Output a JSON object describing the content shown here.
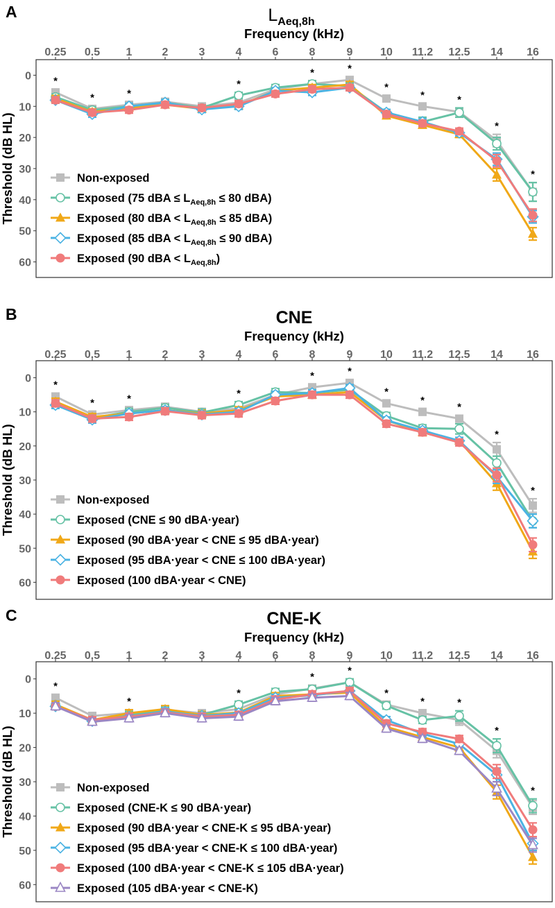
{
  "colors": {
    "non_exposed": "#bdbdbd",
    "green": "#66c2a5",
    "orange": "#f0a818",
    "blue": "#4bb3e3",
    "red": "#f07b7b",
    "purple": "#9b87c4",
    "frame": "#333333",
    "tick_text": "#666666",
    "text": "#000000"
  },
  "chart_data": [
    {
      "type": "line",
      "panel_letter": "A",
      "title_main": "L",
      "title_sub": "Aeq,8h",
      "xlabel": "Frequency (kHz)",
      "ylabel": "Threshold (dB HL)",
      "categories": [
        "0.25",
        "0.5",
        "1",
        "2",
        "3",
        "4",
        "6",
        "8",
        "9",
        "10",
        "11.2",
        "12.5",
        "14",
        "16"
      ],
      "y_ticks": [
        0,
        10,
        20,
        30,
        40,
        50,
        60
      ],
      "ylim": [
        -5,
        65
      ],
      "y_reversed": true,
      "significance_marker": "*",
      "significant_at": [
        "0.25",
        "0.5",
        "1",
        "4",
        "8",
        "9",
        "10",
        "11.2",
        "12.5",
        "14",
        "16"
      ],
      "legend_position": "bottom-left",
      "series": [
        {
          "name": "Non-exposed",
          "label_pre": "Non-exposed",
          "marker": "square",
          "color_key": "non_exposed",
          "values": [
            5.5,
            10.8,
            9.5,
            8.5,
            10.0,
            8.8,
            4.5,
            2.8,
            1.5,
            7.5,
            10.0,
            11.8,
            21.0,
            37.5
          ],
          "errors": [
            1,
            1,
            1,
            1,
            1,
            1,
            1,
            1,
            1,
            1,
            1,
            1,
            2,
            3
          ]
        },
        {
          "name": "Exposed (75 dBA ≤ LAeq,8h ≤ 80 dBA)",
          "label_pre": "Exposed (75 dBA ≤ L",
          "label_sub": "Aeq,8h",
          "label_post": " ≤ 80 dBA)",
          "marker": "circle-open",
          "color_key": "green",
          "values": [
            7.0,
            11.2,
            10.0,
            8.8,
            10.5,
            6.5,
            4.0,
            2.8,
            3.5,
            12.0,
            15.0,
            12.0,
            22.0,
            37.5
          ],
          "errors": [
            1,
            1,
            1,
            1,
            1,
            1,
            1,
            1,
            1,
            1,
            1.5,
            1.5,
            2,
            3
          ]
        },
        {
          "name": "Exposed (80 dBA < LAeq,8h ≤ 85 dBA)",
          "label_pre": "Exposed (80 dBA < L",
          "label_sub": "Aeq,8h",
          "label_post": " ≤ 85 dBA)",
          "marker": "triangle-filled",
          "color_key": "orange",
          "values": [
            7.5,
            11.8,
            10.5,
            9.5,
            10.8,
            9.8,
            5.0,
            4.0,
            3.0,
            13.0,
            16.0,
            19.0,
            32.0,
            51.0
          ],
          "errors": [
            1,
            1,
            1,
            1,
            1,
            1,
            1,
            1,
            1,
            1,
            1,
            1,
            2,
            2
          ]
        },
        {
          "name": "Exposed (85 dBA < LAeq,8h ≤ 90 dBA)",
          "label_pre": "Exposed (85 dBA < L",
          "label_sub": "Aeq,8h",
          "label_post": " ≤ 90 dBA)",
          "marker": "diamond-open",
          "color_key": "blue",
          "values": [
            8.0,
            12.5,
            10.0,
            8.8,
            11.0,
            10.0,
            5.0,
            5.5,
            4.0,
            12.0,
            15.0,
            18.5,
            27.0,
            45.5
          ],
          "errors": [
            1,
            1,
            1,
            1,
            1,
            1,
            1,
            1,
            1,
            1,
            1,
            1,
            2,
            2
          ]
        },
        {
          "name": "Exposed (90 dBA < LAeq,8h)",
          "label_pre": "Exposed (90 dBA < L",
          "label_sub": "Aeq,8h",
          "label_post": ")",
          "marker": "circle-filled",
          "color_key": "red",
          "values": [
            8.0,
            12.0,
            11.2,
            9.5,
            10.5,
            9.2,
            6.0,
            4.5,
            4.0,
            12.5,
            15.5,
            18.0,
            27.5,
            45.0
          ],
          "errors": [
            1,
            1,
            1,
            1,
            1,
            1,
            1,
            1,
            1,
            1,
            1,
            1,
            2,
            2
          ]
        }
      ]
    },
    {
      "type": "line",
      "panel_letter": "B",
      "title_main": "CNE",
      "title_sub": "",
      "xlabel": "Frequency (kHz)",
      "ylabel": "Threshold (dB HL)",
      "categories": [
        "0.25",
        "0.5",
        "1",
        "2",
        "3",
        "4",
        "6",
        "8",
        "9",
        "10",
        "11.2",
        "12.5",
        "14",
        "16"
      ],
      "y_ticks": [
        0,
        10,
        20,
        30,
        40,
        50,
        60
      ],
      "ylim": [
        -5,
        65
      ],
      "y_reversed": true,
      "significance_marker": "*",
      "significant_at": [
        "0.25",
        "0.5",
        "1",
        "4",
        "8",
        "9",
        "10",
        "11.2",
        "12.5",
        "14",
        "16"
      ],
      "legend_position": "bottom-left",
      "series": [
        {
          "name": "Non-exposed",
          "label_pre": "Non-exposed",
          "marker": "square",
          "color_key": "non_exposed",
          "values": [
            5.5,
            10.8,
            9.5,
            8.5,
            10.0,
            9.0,
            5.0,
            2.8,
            1.5,
            7.5,
            10.0,
            12.0,
            21.0,
            37.5
          ],
          "errors": [
            1,
            1,
            1,
            1,
            1,
            1,
            1,
            1,
            1,
            1,
            1,
            1,
            2,
            2
          ]
        },
        {
          "name": "Exposed (CNE ≤ 90 dBA·year)",
          "label_pre": "Exposed (CNE ≤ 90 dBA·year)",
          "marker": "circle-open",
          "color_key": "green",
          "values": [
            8.0,
            11.8,
            10.0,
            8.8,
            10.2,
            8.0,
            4.2,
            4.5,
            3.5,
            11.2,
            14.8,
            15.0,
            25.0,
            42.0
          ],
          "errors": [
            1,
            1,
            1,
            1,
            1,
            1,
            1,
            1,
            1,
            1,
            1,
            1.5,
            2,
            2
          ]
        },
        {
          "name": "Exposed (90 dBA·year < CNE ≤ 95 dBA·year)",
          "label_pre": "Exposed (90 dBA·year < CNE ≤ 95 dBA·year)",
          "marker": "triangle-filled",
          "color_key": "orange",
          "values": [
            7.0,
            11.5,
            10.5,
            9.5,
            10.5,
            9.5,
            5.5,
            5.0,
            4.2,
            12.5,
            16.0,
            18.5,
            31.0,
            51.0
          ],
          "errors": [
            1,
            1,
            1,
            1,
            1,
            1,
            1,
            1,
            1,
            1,
            1,
            1,
            2,
            2
          ]
        },
        {
          "name": "Exposed (95 dBA·year < CNE ≤ 100 dBA·year)",
          "label_pre": "Exposed (95 dBA·year < CNE ≤ 100 dBA·year)",
          "marker": "diamond-open",
          "color_key": "blue",
          "values": [
            8.0,
            12.3,
            10.5,
            9.5,
            10.8,
            10.0,
            5.0,
            4.5,
            3.0,
            12.5,
            15.5,
            18.5,
            29.0,
            42.0
          ],
          "errors": [
            1,
            1,
            1,
            1,
            1,
            1,
            1,
            1,
            1,
            1,
            1,
            1,
            2,
            2
          ]
        },
        {
          "name": "Exposed (100 dBA·year < CNE)",
          "label_pre": "Exposed (100 dBA·year < CNE)",
          "marker": "circle-filled",
          "color_key": "red",
          "values": [
            7.5,
            12.0,
            11.5,
            9.8,
            11.0,
            10.5,
            6.8,
            5.0,
            5.0,
            13.5,
            16.0,
            19.0,
            28.5,
            49.0
          ],
          "errors": [
            1,
            1,
            1,
            1,
            1,
            1,
            1,
            1,
            1,
            1,
            1,
            1,
            2,
            2
          ]
        }
      ]
    },
    {
      "type": "line",
      "panel_letter": "C",
      "title_main": "CNE-K",
      "title_sub": "",
      "xlabel": "Frequency (kHz)",
      "ylabel": "Threshold (dB HL)",
      "categories": [
        "0.25",
        "0.5",
        "1",
        "2",
        "3",
        "4",
        "6",
        "8",
        "9",
        "10",
        "11.2",
        "12.5",
        "14",
        "16"
      ],
      "y_ticks": [
        0,
        10,
        20,
        30,
        40,
        50,
        60
      ],
      "ylim": [
        -5,
        65
      ],
      "y_reversed": true,
      "significance_marker": "*",
      "significant_at": [
        "0.25",
        "1",
        "4",
        "8",
        "9",
        "10",
        "11.2",
        "12.5",
        "14",
        "16"
      ],
      "legend_position": "bottom-left",
      "series": [
        {
          "name": "Non-exposed",
          "label_pre": "Non-exposed",
          "marker": "square",
          "color_key": "non_exposed",
          "values": [
            5.5,
            10.8,
            10.0,
            9.0,
            10.0,
            8.8,
            4.5,
            2.8,
            1.0,
            7.5,
            10.0,
            12.0,
            21.0,
            37.5
          ],
          "errors": [
            1,
            1,
            1,
            1,
            1,
            1,
            1,
            1,
            1,
            1,
            1,
            1.5,
            2,
            2
          ]
        },
        {
          "name": "Exposed (CNE-K ≤ 90 dBA·year)",
          "label_pre": "Exposed (CNE-K ≤ 90 dBA·year)",
          "marker": "circle-open",
          "color_key": "green",
          "values": [
            7.5,
            12.0,
            10.5,
            9.0,
            10.5,
            7.5,
            3.8,
            3.0,
            1.0,
            7.8,
            12.0,
            10.8,
            19.5,
            37.0
          ],
          "errors": [
            1,
            1,
            1,
            1,
            1,
            1,
            1,
            1,
            1,
            1,
            1,
            1.5,
            2,
            2
          ]
        },
        {
          "name": "Exposed (90 dBA·year < CNE-K ≤ 95 dBA·year)",
          "label_pre": "Exposed (90 dBA·year < CNE-K ≤ 95 dBA·year)",
          "marker": "triangle-filled",
          "color_key": "orange",
          "values": [
            7.5,
            12.0,
            10.0,
            8.8,
            10.5,
            9.8,
            5.0,
            4.5,
            4.0,
            14.0,
            17.0,
            20.0,
            33.0,
            52.0
          ],
          "errors": [
            1,
            1,
            1,
            1,
            1,
            1,
            1,
            1,
            1,
            1,
            1,
            1,
            2,
            2
          ]
        },
        {
          "name": "Exposed (95 dBA·year < CNE-K ≤ 100 dBA·year)",
          "label_pre": "Exposed (95 dBA·year < CNE-K ≤ 100 dBA·year)",
          "marker": "diamond-open",
          "color_key": "blue",
          "values": [
            8.0,
            12.3,
            11.0,
            9.5,
            10.8,
            10.0,
            5.5,
            4.8,
            3.5,
            12.0,
            16.0,
            19.0,
            28.0,
            48.0
          ],
          "errors": [
            1,
            1,
            1,
            1,
            1,
            1,
            1,
            1,
            1,
            1,
            1,
            1,
            2,
            2
          ]
        },
        {
          "name": "Exposed (100 dBA·year < CNE-K ≤ 105 dBA·year)",
          "label_pre": "Exposed (100 dBA·year < CNE-K ≤ 105 dBA·year)",
          "marker": "circle-filled",
          "color_key": "red",
          "values": [
            8.0,
            12.0,
            11.0,
            9.8,
            11.0,
            10.5,
            6.0,
            4.5,
            3.5,
            13.0,
            15.5,
            17.5,
            27.0,
            44.0
          ],
          "errors": [
            1,
            1,
            1,
            1,
            1,
            1,
            1,
            1,
            1,
            1,
            1,
            1,
            2,
            2
          ]
        },
        {
          "name": "Exposed (105 dBA·year < CNE-K)",
          "label_pre": "Exposed (105 dBA·year < CNE-K)",
          "marker": "triangle-open",
          "color_key": "purple",
          "values": [
            8.0,
            12.5,
            11.5,
            10.0,
            11.5,
            11.0,
            6.5,
            5.5,
            5.0,
            14.5,
            17.5,
            21.0,
            32.0,
            48.5
          ],
          "errors": [
            1,
            1,
            1,
            1,
            1,
            1,
            1,
            1,
            1,
            1,
            1,
            1,
            2,
            2
          ]
        }
      ]
    }
  ]
}
